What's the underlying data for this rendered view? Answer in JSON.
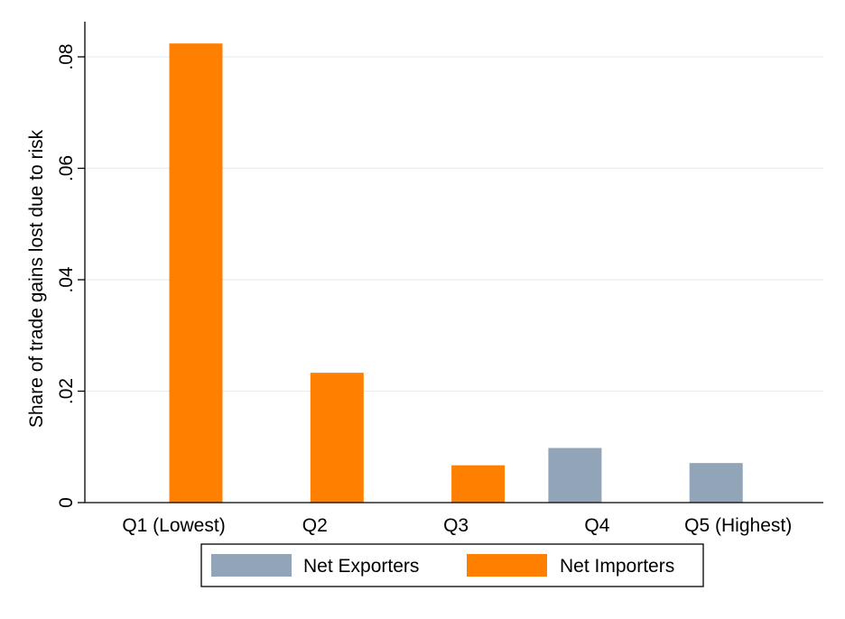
{
  "chart_data": {
    "type": "bar",
    "categories": [
      "Q1 (Lowest)",
      "Q2",
      "Q3",
      "Q4",
      "Q5 (Highest)"
    ],
    "series": [
      {
        "name": "Net Exporters",
        "color": "#92a4b7",
        "values": [
          null,
          null,
          null,
          0.0098,
          0.0071
        ]
      },
      {
        "name": "Net Importers",
        "color": "#ff8000",
        "values": [
          0.0824,
          0.0233,
          0.0067,
          null,
          null
        ]
      }
    ],
    "ylabel": "Share of trade gains lost due to risk",
    "xlabel": "",
    "ylim": [
      0,
      0.085
    ],
    "yticks": [
      0,
      0.02,
      0.04,
      0.06,
      0.08
    ],
    "ytick_labels": [
      "0",
      ".02",
      ".04",
      ".06",
      ".08"
    ],
    "grid": true,
    "legend_position": "bottom"
  }
}
